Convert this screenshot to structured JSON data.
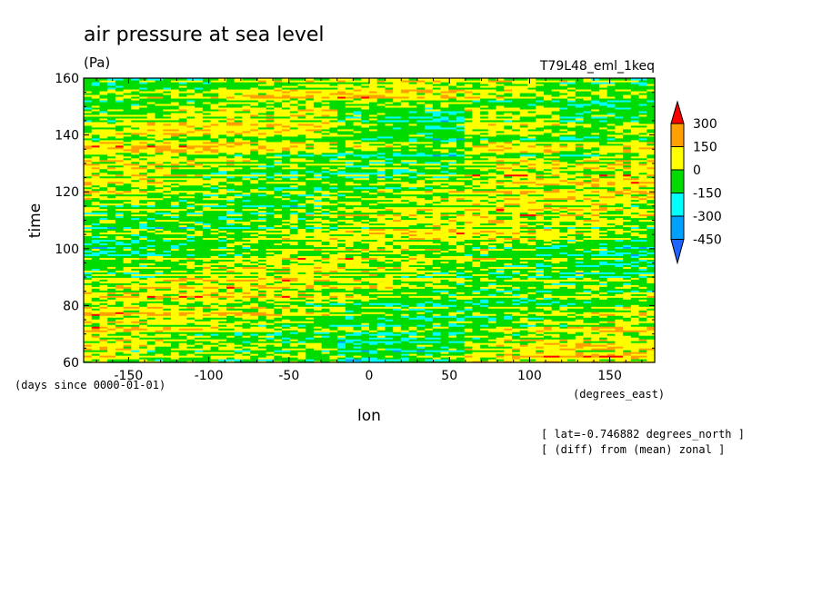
{
  "chart_data": {
    "type": "heatmap",
    "title": "air pressure at sea level",
    "units": "(Pa)",
    "run_name": "T79L48_eml_1keq",
    "xlabel": "lon",
    "xunits": "(degrees_east)",
    "ylabel": "time",
    "yunits": "(days since 0000-01-01)",
    "xlim": [
      -178,
      178
    ],
    "ylim": [
      60,
      160
    ],
    "x_ticks": [
      -150,
      -100,
      -50,
      0,
      50,
      100,
      150
    ],
    "x_tick_labels": [
      "-150",
      "-100",
      "-50",
      "0",
      "50",
      "100",
      "150"
    ],
    "y_ticks": [
      60,
      80,
      100,
      120,
      140,
      160
    ],
    "y_tick_labels": [
      "60",
      "80",
      "100",
      "120",
      "140",
      "160"
    ],
    "colorbar": {
      "levels": [
        -450,
        -300,
        -150,
        0,
        150,
        300
      ],
      "labels": [
        "300",
        "150",
        "0",
        "-150",
        "-300",
        "-450"
      ],
      "colors": [
        "#1e64ff",
        "#00a0ff",
        "#00ffff",
        "#00dc00",
        "#ffff00",
        "#ffa000",
        "#ff0000"
      ]
    },
    "notes": [
      "[ lat=-0.746882 degrees_north ]",
      "[ (diff) from (mean) zonal ]"
    ]
  }
}
